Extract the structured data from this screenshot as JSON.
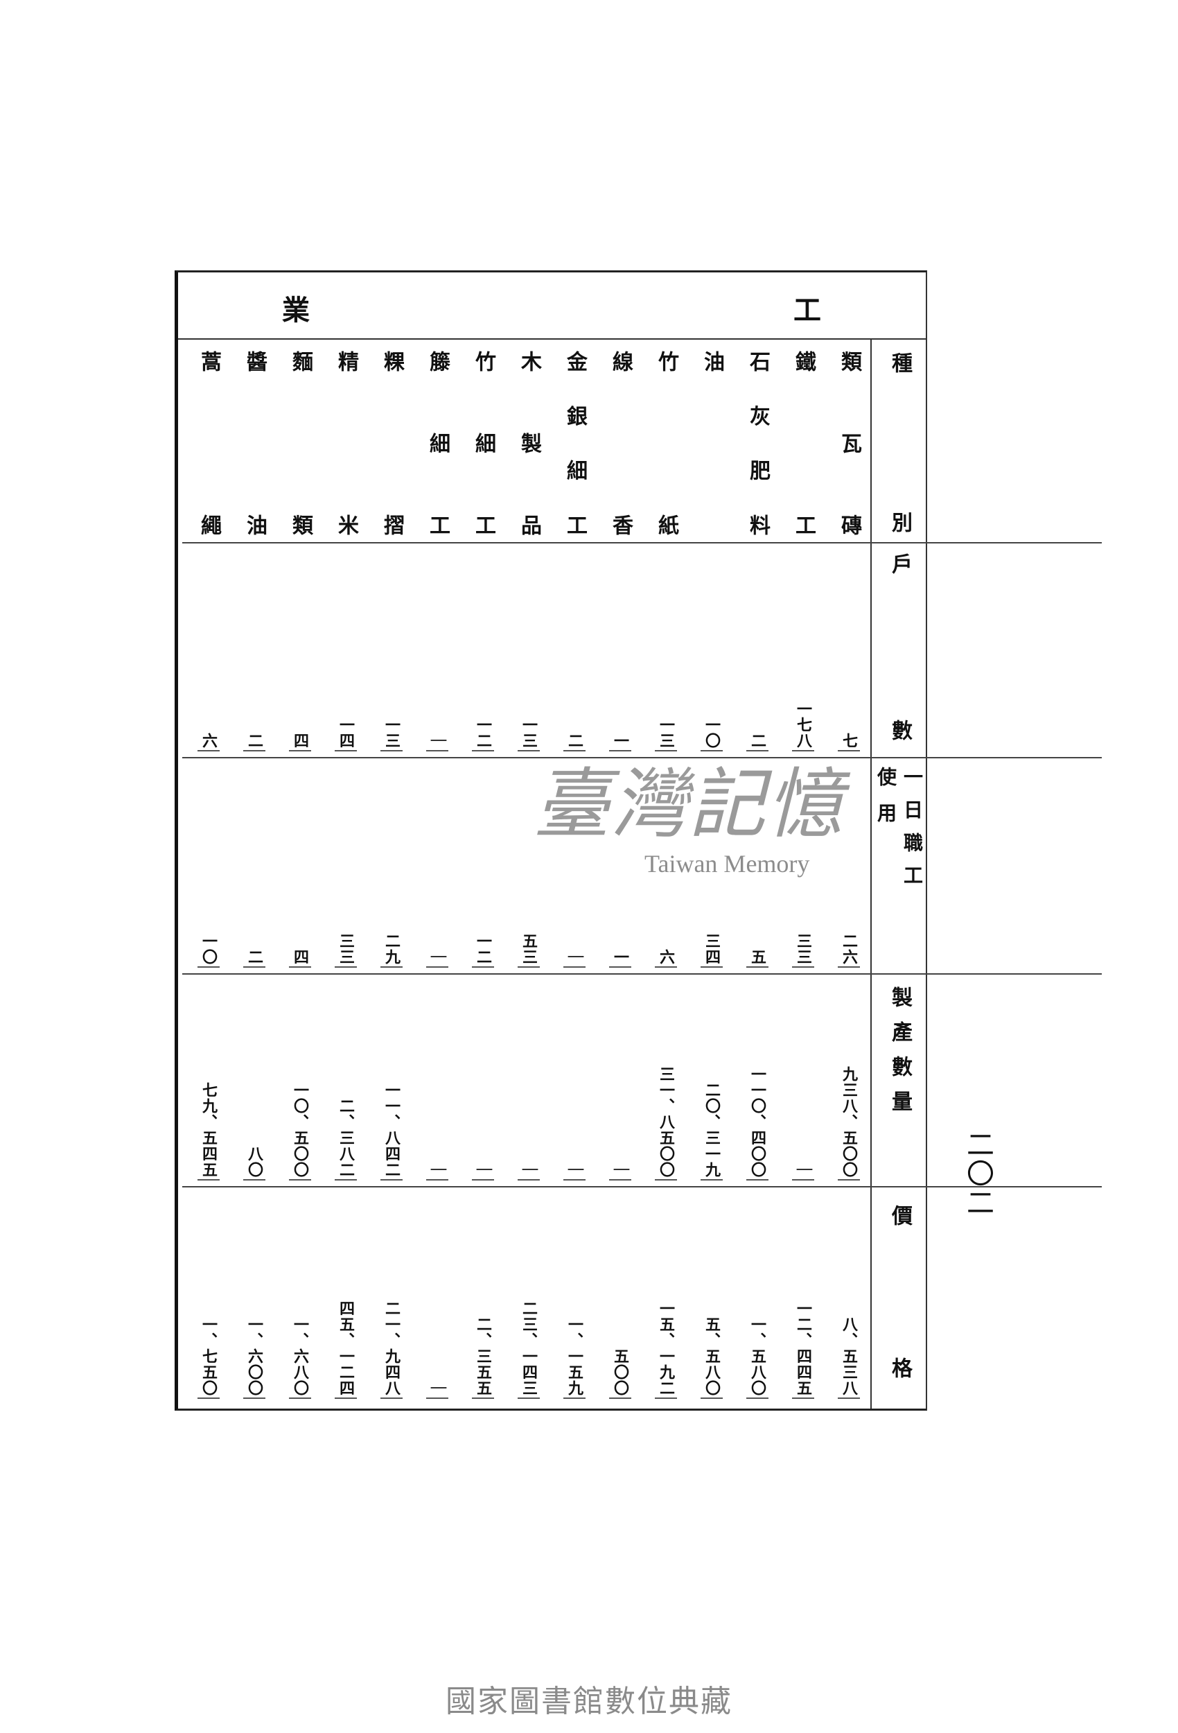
{
  "title": {
    "right": "工",
    "left": "業"
  },
  "row_headers": {
    "category": "種別",
    "households": "戶數",
    "workers_main": "一日職工",
    "workers_sub": "使用",
    "production": "製產數量",
    "price": "價格"
  },
  "categories": [
    {
      "label": "類瓦磚",
      "households": "七",
      "workers": "二六",
      "production": "九三八、五〇〇",
      "price": "八、五三八"
    },
    {
      "label": "鐵工",
      "households": "一七八",
      "workers": "三三",
      "production": "｜",
      "price": "一二、四四五"
    },
    {
      "label": "石灰肥料",
      "households": "二",
      "workers": "五",
      "production": "一一〇、四〇〇",
      "price": "一、五八〇"
    },
    {
      "label": "油",
      "households": "一〇",
      "workers": "三四",
      "production": "二〇、三一九",
      "price": "五、五八〇"
    },
    {
      "label": "竹紙",
      "households": "一三",
      "workers": "六",
      "production": "三一、八五〇〇",
      "price": "一五、一九二"
    },
    {
      "label": "線香",
      "households": "一",
      "workers": "一",
      "production": "｜",
      "price": "五〇〇"
    },
    {
      "label": "金銀細工",
      "households": "二",
      "workers": "｜",
      "production": "｜",
      "price": "一、一五九"
    },
    {
      "label": "木製品",
      "households": "一三",
      "workers": "五三",
      "production": "｜",
      "price": "二三、一四三"
    },
    {
      "label": "竹細工",
      "households": "一二",
      "workers": "一二",
      "production": "｜",
      "price": "二、三五五"
    },
    {
      "label": "籐細工",
      "households": "｜",
      "workers": "｜",
      "production": "｜",
      "price": "｜"
    },
    {
      "label": "粿摺",
      "households": "一三",
      "workers": "二九",
      "production": "一一、八四二",
      "price": "二一、九四八"
    },
    {
      "label": "精米",
      "households": "一四",
      "workers": "三三",
      "production": "二、三八二",
      "price": "四五、一二四"
    },
    {
      "label": "麵類",
      "households": "四",
      "workers": "四",
      "production": "一〇、五〇〇",
      "price": "一、六八〇"
    },
    {
      "label": "醬油",
      "households": "二",
      "workers": "二",
      "production": "八〇",
      "price": "一、六〇〇"
    },
    {
      "label": "蒿繩",
      "households": "六",
      "workers": "一〇",
      "production": "七九、五四五",
      "price": "一、七五〇"
    }
  ],
  "page_number": "二〇二",
  "watermark": {
    "main": "臺灣記憶",
    "sub": "Taiwan Memory"
  },
  "footer": "國家圖書館數位典藏"
}
